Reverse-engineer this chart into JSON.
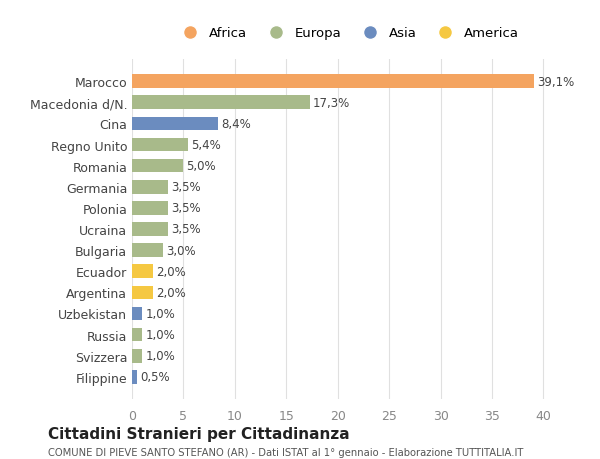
{
  "countries": [
    "Marocco",
    "Macedonia d/N.",
    "Cina",
    "Regno Unito",
    "Romania",
    "Germania",
    "Polonia",
    "Ucraina",
    "Bulgaria",
    "Ecuador",
    "Argentina",
    "Uzbekistan",
    "Russia",
    "Svizzera",
    "Filippine"
  ],
  "values": [
    39.1,
    17.3,
    8.4,
    5.4,
    5.0,
    3.5,
    3.5,
    3.5,
    3.0,
    2.0,
    2.0,
    1.0,
    1.0,
    1.0,
    0.5
  ],
  "labels": [
    "39,1%",
    "17,3%",
    "8,4%",
    "5,4%",
    "5,0%",
    "3,5%",
    "3,5%",
    "3,5%",
    "3,0%",
    "2,0%",
    "2,0%",
    "1,0%",
    "1,0%",
    "1,0%",
    "0,5%"
  ],
  "continents": [
    "Africa",
    "Europa",
    "Asia",
    "Europa",
    "Europa",
    "Europa",
    "Europa",
    "Europa",
    "Europa",
    "America",
    "America",
    "Asia",
    "Europa",
    "Europa",
    "Asia"
  ],
  "colors": {
    "Africa": "#F4A460",
    "Europa": "#A8BA8A",
    "Asia": "#6B8CBF",
    "America": "#F5C842"
  },
  "legend_order": [
    "Africa",
    "Europa",
    "Asia",
    "America"
  ],
  "legend_colors": {
    "Africa": "#F4A460",
    "Europa": "#A8BA8A",
    "Asia": "#6B8CBF",
    "America": "#F5C842"
  },
  "title": "Cittadini Stranieri per Cittadinanza",
  "subtitle": "COMUNE DI PIEVE SANTO STEFANO (AR) - Dati ISTAT al 1° gennaio - Elaborazione TUTTITALIA.IT",
  "xlim": [
    0,
    42
  ],
  "xticks": [
    0,
    5,
    10,
    15,
    20,
    25,
    30,
    35,
    40
  ],
  "background_color": "#ffffff",
  "grid_color": "#e0e0e0"
}
